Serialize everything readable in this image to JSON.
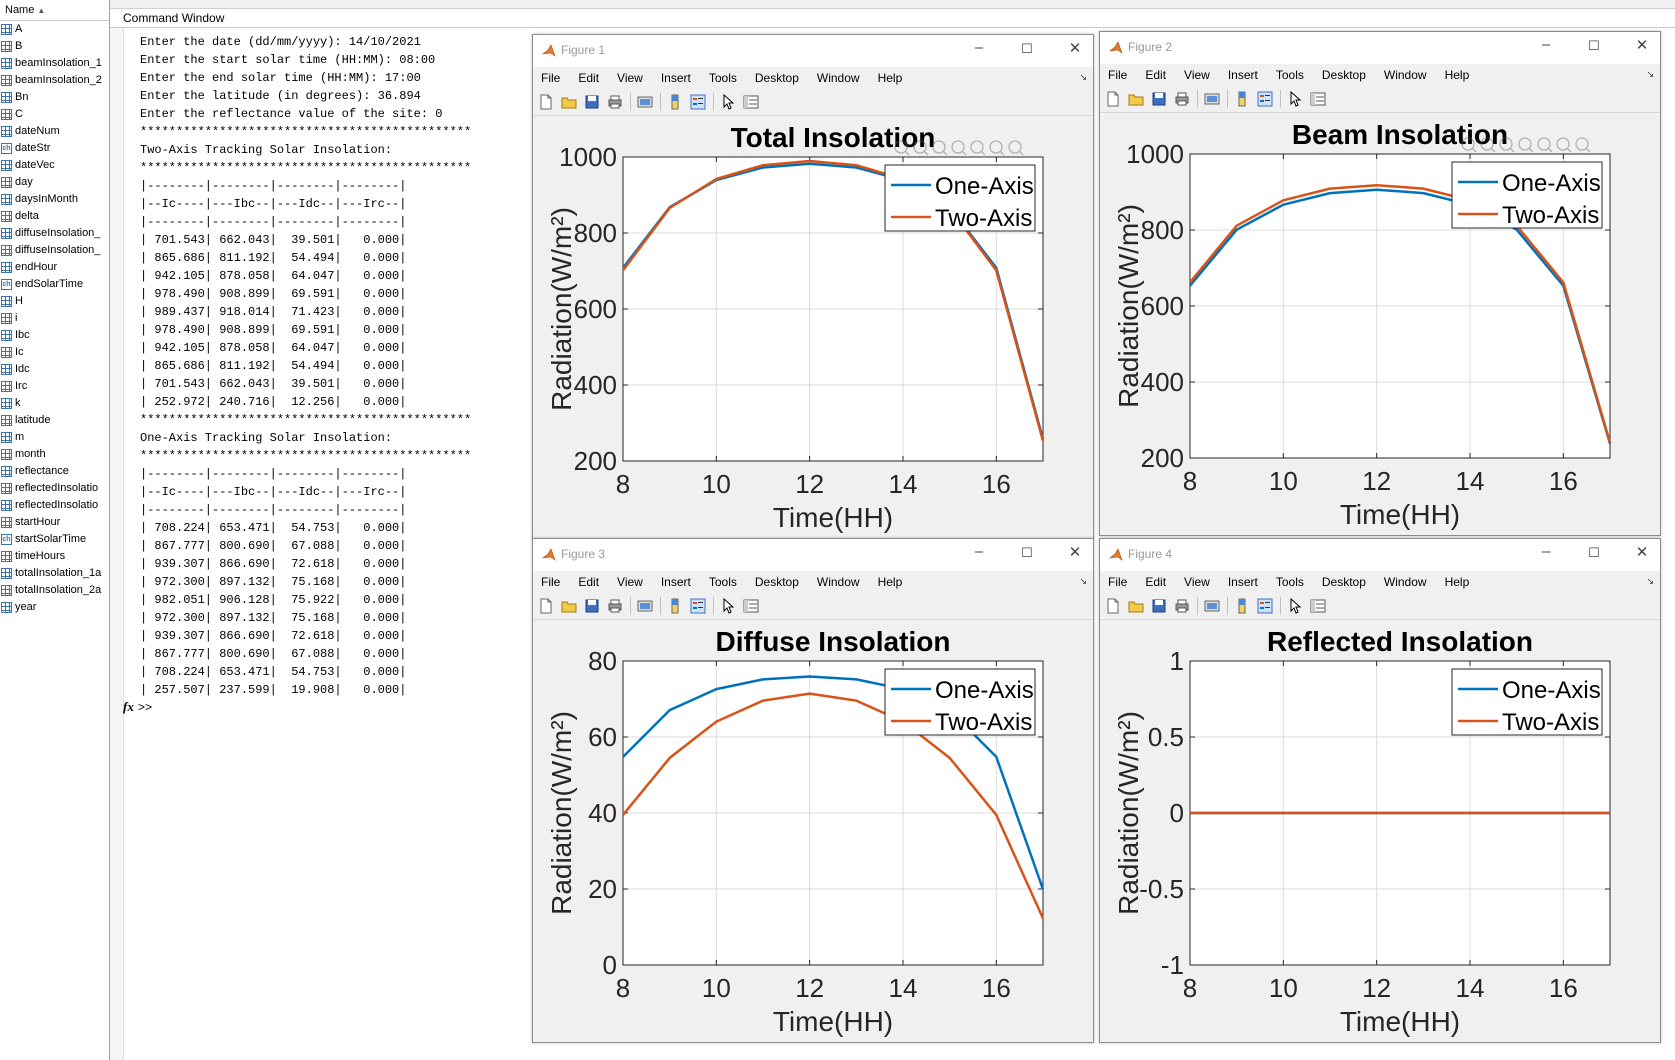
{
  "workspace": {
    "header": "Name",
    "variables": [
      {
        "name": "A",
        "type": "matrix"
      },
      {
        "name": "B",
        "type": "matrix"
      },
      {
        "name": "beamInsolation_1",
        "type": "matrix"
      },
      {
        "name": "beamInsolation_2",
        "type": "matrix"
      },
      {
        "name": "Bn",
        "type": "matrix"
      },
      {
        "name": "C",
        "type": "matrix"
      },
      {
        "name": "dateNum",
        "type": "matrix"
      },
      {
        "name": "dateStr",
        "type": "char"
      },
      {
        "name": "dateVec",
        "type": "matrix"
      },
      {
        "name": "day",
        "type": "matrix"
      },
      {
        "name": "daysInMonth",
        "type": "matrix"
      },
      {
        "name": "delta",
        "type": "matrix"
      },
      {
        "name": "diffuseInsolation_",
        "type": "matrix"
      },
      {
        "name": "diffuseInsolation_",
        "type": "matrix"
      },
      {
        "name": "endHour",
        "type": "matrix"
      },
      {
        "name": "endSolarTime",
        "type": "char"
      },
      {
        "name": "H",
        "type": "matrix"
      },
      {
        "name": "i",
        "type": "matrix"
      },
      {
        "name": "Ibc",
        "type": "matrix"
      },
      {
        "name": "Ic",
        "type": "matrix"
      },
      {
        "name": "Idc",
        "type": "matrix"
      },
      {
        "name": "Irc",
        "type": "matrix"
      },
      {
        "name": "k",
        "type": "matrix"
      },
      {
        "name": "latitude",
        "type": "matrix"
      },
      {
        "name": "m",
        "type": "matrix"
      },
      {
        "name": "month",
        "type": "matrix"
      },
      {
        "name": "reflectance",
        "type": "matrix"
      },
      {
        "name": "reflectedInsolatio",
        "type": "matrix"
      },
      {
        "name": "reflectedInsolatio",
        "type": "matrix"
      },
      {
        "name": "startHour",
        "type": "matrix"
      },
      {
        "name": "startSolarTime",
        "type": "char"
      },
      {
        "name": "timeHours",
        "type": "matrix"
      },
      {
        "name": "totalInsolation_1a",
        "type": "matrix"
      },
      {
        "name": "totalInsolation_2a",
        "type": "matrix"
      },
      {
        "name": "year",
        "type": "matrix"
      }
    ]
  },
  "command_window": {
    "title": "Command Window",
    "prompt": ">>",
    "fx_label": "fx",
    "lines": [
      "Enter the date (dd/mm/yyyy): 14/10/2021",
      "Enter the start solar time (HH:MM): 08:00",
      "Enter the end solar time (HH:MM): 17:00",
      "Enter the latitude (in degrees): 36.894",
      "Enter the reflectance value of the site: 0",
      "**********************************************",
      "Two-Axis Tracking Solar Insolation:",
      "**********************************************",
      "|--------|--------|--------|--------|",
      "|--Ic----|---Ibc--|---Idc--|---Irc--|",
      "|--------|--------|--------|--------|",
      "| 701.543| 662.043|  39.501|   0.000|",
      "| 865.686| 811.192|  54.494|   0.000|",
      "| 942.105| 878.058|  64.047|   0.000|",
      "| 978.490| 908.899|  69.591|   0.000|",
      "| 989.437| 918.014|  71.423|   0.000|",
      "| 978.490| 908.899|  69.591|   0.000|",
      "| 942.105| 878.058|  64.047|   0.000|",
      "| 865.686| 811.192|  54.494|   0.000|",
      "| 701.543| 662.043|  39.501|   0.000|",
      "| 252.972| 240.716|  12.256|   0.000|",
      "**********************************************",
      "One-Axis Tracking Solar Insolation:",
      "**********************************************",
      "|--------|--------|--------|--------|",
      "|--Ic----|---Ibc--|---Idc--|---Irc--|",
      "|--------|--------|--------|--------|",
      "| 708.224| 653.471|  54.753|   0.000|",
      "| 867.777| 800.690|  67.088|   0.000|",
      "| 939.307| 866.690|  72.618|   0.000|",
      "| 972.300| 897.132|  75.168|   0.000|",
      "| 982.051| 906.128|  75.922|   0.000|",
      "| 972.300| 897.132|  75.168|   0.000|",
      "| 939.307| 866.690|  72.618|   0.000|",
      "| 867.777| 800.690|  67.088|   0.000|",
      "| 708.224| 653.471|  54.753|   0.000|",
      "| 257.507| 237.599|  19.908|   0.000|"
    ]
  },
  "menu_items": [
    "File",
    "Edit",
    "View",
    "Insert",
    "Tools",
    "Desktop",
    "Window",
    "Help"
  ],
  "colors": {
    "one_axis": "#0072bd",
    "two_axis": "#d95319"
  },
  "figures": [
    {
      "window_title": "Figure 1"
    },
    {
      "window_title": "Figure 2"
    },
    {
      "window_title": "Figure 3"
    },
    {
      "window_title": "Figure 4"
    }
  ],
  "chart_data": [
    {
      "type": "line",
      "title": "Total Insolation",
      "xlabel": "Time(HH)",
      "ylabel": "Radiation(W/m²)",
      "xlim": [
        8,
        17
      ],
      "ylim": [
        200,
        1000
      ],
      "xticks": [
        8,
        10,
        12,
        14,
        16
      ],
      "yticks": [
        200,
        400,
        600,
        800,
        1000
      ],
      "grid": true,
      "legend": "top-right",
      "x": [
        8,
        9,
        10,
        11,
        12,
        13,
        14,
        15,
        16,
        17
      ],
      "series": [
        {
          "name": "One-Axis",
          "values": [
            708.224,
            867.777,
            939.307,
            972.3,
            982.051,
            972.3,
            939.307,
            867.777,
            708.224,
            257.507
          ]
        },
        {
          "name": "Two-Axis",
          "values": [
            701.543,
            865.686,
            942.105,
            978.49,
            989.437,
            978.49,
            942.105,
            865.686,
            701.543,
            252.972
          ]
        }
      ]
    },
    {
      "type": "line",
      "title": "Beam Insolation",
      "xlabel": "Time(HH)",
      "ylabel": "Radiation(W/m²)",
      "xlim": [
        8,
        17
      ],
      "ylim": [
        200,
        1000
      ],
      "xticks": [
        8,
        10,
        12,
        14,
        16
      ],
      "yticks": [
        200,
        400,
        600,
        800,
        1000
      ],
      "grid": true,
      "legend": "top-right",
      "x": [
        8,
        9,
        10,
        11,
        12,
        13,
        14,
        15,
        16,
        17
      ],
      "series": [
        {
          "name": "One-Axis",
          "values": [
            653.471,
            800.69,
            866.69,
            897.132,
            906.128,
            897.132,
            866.69,
            800.69,
            653.471,
            237.599
          ]
        },
        {
          "name": "Two-Axis",
          "values": [
            662.043,
            811.192,
            878.058,
            908.899,
            918.014,
            908.899,
            878.058,
            811.192,
            662.043,
            240.716
          ]
        }
      ]
    },
    {
      "type": "line",
      "title": "Diffuse Insolation",
      "xlabel": "Time(HH)",
      "ylabel": "Radiation(W/m²)",
      "xlim": [
        8,
        17
      ],
      "ylim": [
        0,
        80
      ],
      "xticks": [
        8,
        10,
        12,
        14,
        16
      ],
      "yticks": [
        0,
        20,
        40,
        60,
        80
      ],
      "grid": true,
      "legend": "top-right",
      "x": [
        8,
        9,
        10,
        11,
        12,
        13,
        14,
        15,
        16,
        17
      ],
      "series": [
        {
          "name": "One-Axis",
          "values": [
            54.753,
            67.088,
            72.618,
            75.168,
            75.922,
            75.168,
            72.618,
            67.088,
            54.753,
            19.908
          ]
        },
        {
          "name": "Two-Axis",
          "values": [
            39.501,
            54.494,
            64.047,
            69.591,
            71.423,
            69.591,
            64.047,
            54.494,
            39.501,
            12.256
          ]
        }
      ]
    },
    {
      "type": "line",
      "title": "Reflected Insolation",
      "xlabel": "Time(HH)",
      "ylabel": "Radiation(W/m²)",
      "xlim": [
        8,
        17
      ],
      "ylim": [
        -1,
        1
      ],
      "xticks": [
        8,
        10,
        12,
        14,
        16
      ],
      "yticks": [
        -1,
        -0.5,
        0,
        0.5,
        1
      ],
      "grid": true,
      "legend": "top-right",
      "x": [
        8,
        9,
        10,
        11,
        12,
        13,
        14,
        15,
        16,
        17
      ],
      "series": [
        {
          "name": "One-Axis",
          "values": [
            0,
            0,
            0,
            0,
            0,
            0,
            0,
            0,
            0,
            0
          ]
        },
        {
          "name": "Two-Axis",
          "values": [
            0,
            0,
            0,
            0,
            0,
            0,
            0,
            0,
            0,
            0
          ]
        }
      ]
    }
  ]
}
